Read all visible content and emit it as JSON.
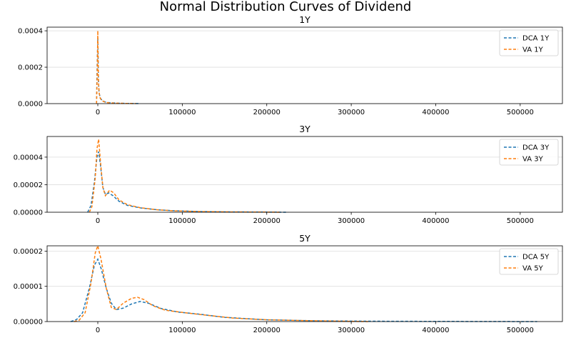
{
  "figure": {
    "title": "Normal Distribution Curves of Dividend"
  },
  "colors": {
    "dca": "#1f77b4",
    "va": "#ff7f0e",
    "grid": "#dddddd",
    "axis": "#000000"
  },
  "chart_data": [
    {
      "type": "line",
      "title": "1Y",
      "xlabel": "",
      "ylabel": "",
      "xlim": [
        -60000,
        550000
      ],
      "ylim": [
        0,
        0.00042
      ],
      "xticks": [
        0,
        100000,
        200000,
        300000,
        400000,
        500000
      ],
      "xtick_labels": [
        "0",
        "100000",
        "200000",
        "300000",
        "400000",
        "500000"
      ],
      "yticks": [
        0,
        0.0002,
        0.0004
      ],
      "ytick_labels": [
        "0.0000",
        "0.0002",
        "0.0004"
      ],
      "grid": "horizontal",
      "legend": "top-right",
      "line_style": "dashed",
      "series": [
        {
          "name": "DCA 1Y",
          "color": "#1f77b4",
          "x": [
            -1500,
            -800,
            0,
            800,
            1500,
            3000,
            5000,
            8000,
            12000,
            18000,
            25000,
            35000,
            45000,
            50000
          ],
          "y": [
            0,
            0.0002,
            0.00036,
            0.00012,
            6e-05,
            3e-05,
            1.8e-05,
            1e-05,
            6e-06,
            4e-06,
            2e-06,
            1e-06,
            5e-07,
            2e-07
          ]
        },
        {
          "name": "VA 1Y",
          "color": "#ff7f0e",
          "x": [
            -1500,
            -700,
            0,
            700,
            1500,
            3000,
            5000,
            8000,
            12000,
            18000,
            25000,
            35000,
            45000
          ],
          "y": [
            0,
            0.00015,
            0.0004,
            0.00014,
            6e-05,
            2.8e-05,
            1.6e-05,
            9e-06,
            5e-06,
            3e-06,
            2e-06,
            1e-06,
            4e-07
          ]
        }
      ]
    },
    {
      "type": "line",
      "title": "3Y",
      "xlabel": "",
      "ylabel": "",
      "xlim": [
        -60000,
        550000
      ],
      "ylim": [
        0,
        5.5e-05
      ],
      "xticks": [
        0,
        100000,
        200000,
        300000,
        400000,
        500000
      ],
      "xtick_labels": [
        "0",
        "100000",
        "200000",
        "300000",
        "400000",
        "500000"
      ],
      "yticks": [
        0,
        2e-05,
        4e-05
      ],
      "ytick_labels": [
        "0.00000",
        "0.00002",
        "0.00004"
      ],
      "grid": "horizontal",
      "legend": "top-right",
      "line_style": "dashed",
      "series": [
        {
          "name": "DCA 3Y",
          "color": "#1f77b4",
          "x": [
            -12000,
            -8000,
            -4000,
            -1000,
            1000,
            3000,
            6000,
            9000,
            13000,
            18000,
            25000,
            35000,
            50000,
            70000,
            90000,
            120000,
            160000,
            200000,
            225000
          ],
          "y": [
            0,
            5e-06,
            2.2e-05,
            4e-05,
            4.4e-05,
            3.5e-05,
            1.8e-05,
            1.3e-05,
            1.4e-05,
            1.2e-05,
            8e-06,
            5e-06,
            3.2e-06,
            1.8e-06,
            1.1e-06,
            5e-07,
            2e-07,
            1e-07,
            0
          ]
        },
        {
          "name": "VA 3Y",
          "color": "#ff7f0e",
          "x": [
            -10000,
            -7000,
            -3000,
            -1000,
            1000,
            3000,
            6000,
            9000,
            14000,
            19000,
            25000,
            35000,
            50000,
            70000,
            90000,
            120000,
            160000,
            200000,
            215000
          ],
          "y": [
            0,
            4e-06,
            2.5e-05,
            4.6e-05,
            5.3e-05,
            3.8e-05,
            1.8e-05,
            1.2e-05,
            1.6e-05,
            1.4e-05,
            9e-06,
            5.5e-06,
            3.3e-06,
            1.8e-06,
            1e-06,
            5e-07,
            2e-07,
            1e-07,
            0
          ]
        }
      ]
    },
    {
      "type": "line",
      "title": "5Y",
      "xlabel": "",
      "ylabel": "",
      "xlim": [
        -60000,
        550000
      ],
      "ylim": [
        0,
        2.15e-05
      ],
      "xticks": [
        0,
        100000,
        200000,
        300000,
        400000,
        500000
      ],
      "xtick_labels": [
        "0",
        "100000",
        "200000",
        "300000",
        "400000",
        "500000"
      ],
      "yticks": [
        0,
        1e-05,
        2e-05
      ],
      "ytick_labels": [
        "0.00000",
        "0.00001",
        "0.00002"
      ],
      "grid": "horizontal",
      "legend": "top-right",
      "line_style": "dashed",
      "series": [
        {
          "name": "DCA 5Y",
          "color": "#1f77b4",
          "x": [
            -32000,
            -25000,
            -18000,
            -10000,
            -4000,
            0,
            4000,
            10000,
            16000,
            22000,
            30000,
            40000,
            50000,
            60000,
            75000,
            95000,
            120000,
            150000,
            200000,
            260000,
            320000,
            400000,
            520000
          ],
          "y": [
            0,
            6e-07,
            2.5e-06,
            9.5e-06,
            1.6e-05,
            1.77e-05,
            1.5e-05,
            9.5e-06,
            5.2e-06,
            3.4e-06,
            3.8e-06,
            5e-06,
            5.7e-06,
            5.2e-06,
            3.7e-06,
            2.7e-06,
            2.1e-06,
            1.2e-06,
            5e-07,
            2e-07,
            1e-07,
            5e-08,
            0
          ]
        },
        {
          "name": "VA 5Y",
          "color": "#ff7f0e",
          "x": [
            -28000,
            -22000,
            -15000,
            -8000,
            -3000,
            0,
            4000,
            10000,
            16000,
            22000,
            30000,
            40000,
            47000,
            55000,
            65000,
            80000,
            100000,
            125000,
            160000,
            200000,
            260000,
            320000
          ],
          "y": [
            0,
            4e-07,
            2.5e-06,
            1.1e-05,
            1.95e-05,
            2.15e-05,
            1.75e-05,
            9.5e-06,
            4e-06,
            3.4e-06,
            5.2e-06,
            6.6e-06,
            6.9e-06,
            6.2e-06,
            4.5e-06,
            3.2e-06,
            2.6e-06,
            1.9e-06,
            1e-06,
            5e-07,
            2e-07,
            0
          ]
        }
      ]
    }
  ]
}
